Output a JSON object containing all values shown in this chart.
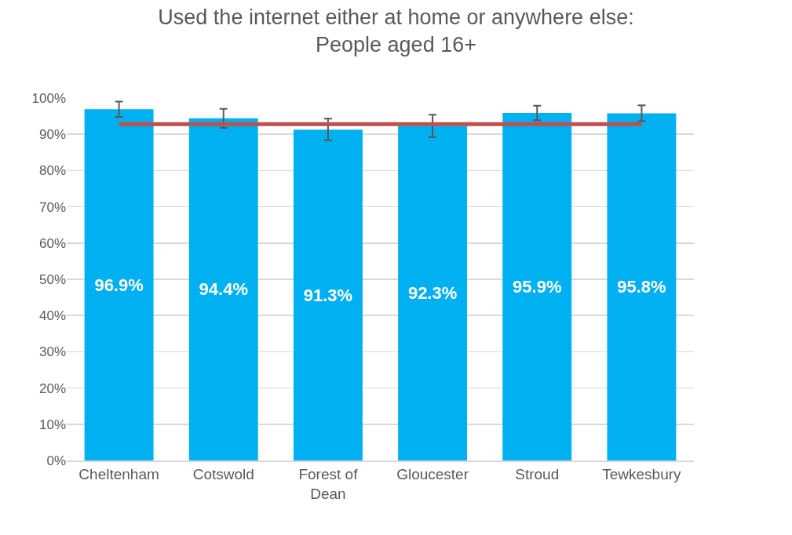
{
  "chart_data": {
    "type": "bar",
    "title": "Used the internet either at home or anywhere else:\nPeople aged 16+",
    "categories": [
      "Cheltenham",
      "Cotswold",
      "Forest of\nDean",
      "Gloucester",
      "Stroud",
      "Tewkesbury"
    ],
    "series": [
      {
        "color": "#00b0f0",
        "values": [
          96.9,
          94.4,
          91.3,
          92.3,
          95.9,
          95.8
        ],
        "value_labels": [
          "96.9%",
          "94.4%",
          "91.3%",
          "92.3%",
          "95.9%",
          "95.8%"
        ],
        "errors": [
          2.1,
          2.6,
          3.0,
          3.1,
          2.0,
          2.2
        ]
      },
      {
        "type": "line",
        "color": "#c0504d",
        "values": [
          92.8,
          92.8,
          92.8,
          92.8,
          92.8,
          92.8
        ]
      }
    ],
    "ylim": [
      0,
      100
    ],
    "yticks": [
      {
        "value": 0,
        "label": "0%"
      },
      {
        "value": 10,
        "label": "10%"
      },
      {
        "value": 20,
        "label": "20%"
      },
      {
        "value": 30,
        "label": "30%"
      },
      {
        "value": 40,
        "label": "40%"
      },
      {
        "value": 50,
        "label": "50%"
      },
      {
        "value": 60,
        "label": "60%"
      },
      {
        "value": 70,
        "label": "70%"
      },
      {
        "value": 80,
        "label": "80%"
      },
      {
        "value": 90,
        "label": "90%"
      },
      {
        "value": 100,
        "label": "100%"
      }
    ],
    "grid": "y",
    "marker": "none"
  }
}
